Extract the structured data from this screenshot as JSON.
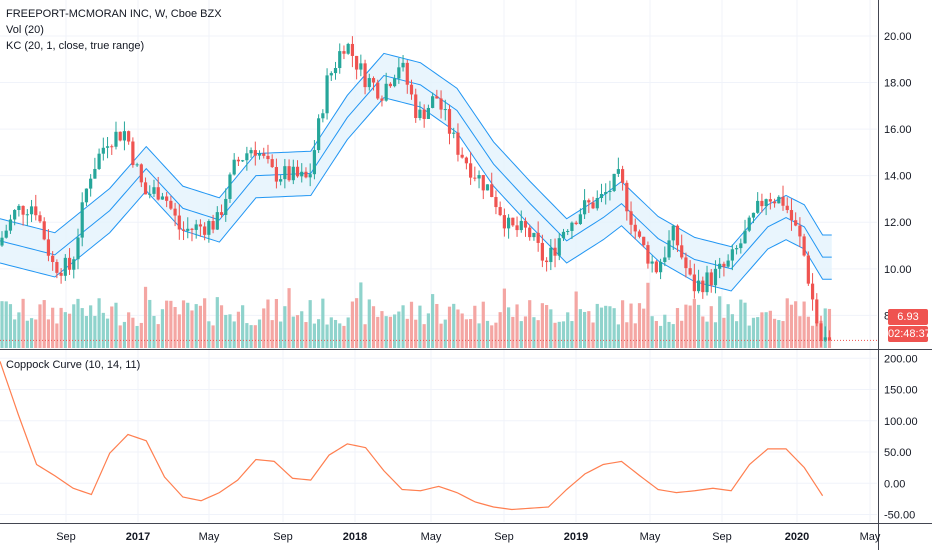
{
  "legend": {
    "symbol": "FREEPORT-MCMORAN INC, W, Cboe BZX",
    "volume": "Vol (20)",
    "keltner": "KC (20, 1, close, true range)",
    "coppock": "Coppock Curve (10, 14, 11)"
  },
  "price_tags": {
    "last": "6.93",
    "countdown": "02:48:37"
  },
  "colors": {
    "up": "#26a69a",
    "down": "#ef5350",
    "vol_up": "#8fd3cc",
    "vol_down": "#f4a6a3",
    "kc_line": "#2196f3",
    "kc_fill": "#e3f2fd",
    "coppock": "#ff7f50",
    "last_line": "#ef5350"
  },
  "chart_data": [
    {
      "type": "candlestick",
      "title": "FREEPORT-MCMORAN INC, W, Cboe BZX",
      "y_ticks": [
        "8.00",
        "10.00",
        "12.00",
        "14.00",
        "16.00",
        "18.00",
        "20.00"
      ],
      "ylim": [
        6.6,
        21.2
      ],
      "x_ticks": [
        "Sep",
        "2017",
        "May",
        "Sep",
        "2018",
        "May",
        "Sep",
        "2019",
        "May",
        "Sep",
        "2020",
        "May"
      ],
      "last_price": 6.93,
      "price_path": [
        [
          "2016-06",
          11.0
        ],
        [
          "2016-07",
          12.5
        ],
        [
          "2016-08",
          12.8
        ],
        [
          "2016-09",
          10.2
        ],
        [
          "2016-10",
          10.0
        ],
        [
          "2016-11",
          14.0
        ],
        [
          "2016-12",
          15.6
        ],
        [
          "2017-01",
          15.9
        ],
        [
          "2017-02",
          13.2
        ],
        [
          "2017-03",
          13.4
        ],
        [
          "2017-04",
          11.6
        ],
        [
          "2017-05",
          11.8
        ],
        [
          "2017-06",
          12.0
        ],
        [
          "2017-07",
          14.5
        ],
        [
          "2017-08",
          15.3
        ],
        [
          "2017-09",
          14.1
        ],
        [
          "2017-10",
          14.0
        ],
        [
          "2017-11",
          13.8
        ],
        [
          "2017-12",
          18.0
        ],
        [
          "2018-01",
          19.8
        ],
        [
          "2018-02",
          18.3
        ],
        [
          "2018-03",
          17.6
        ],
        [
          "2018-04",
          18.9
        ],
        [
          "2018-05",
          16.5
        ],
        [
          "2018-06",
          17.4
        ],
        [
          "2018-07",
          15.4
        ],
        [
          "2018-08",
          14.2
        ],
        [
          "2018-09",
          13.3
        ],
        [
          "2018-10",
          11.7
        ],
        [
          "2018-11",
          11.6
        ],
        [
          "2018-12",
          10.2
        ],
        [
          "2019-01",
          11.8
        ],
        [
          "2019-02",
          12.6
        ],
        [
          "2019-03",
          13.0
        ],
        [
          "2019-04",
          13.9
        ],
        [
          "2019-05",
          11.3
        ],
        [
          "2019-06",
          10.0
        ],
        [
          "2019-07",
          11.5
        ],
        [
          "2019-08",
          9.2
        ],
        [
          "2019-09",
          9.6
        ],
        [
          "2019-10",
          10.2
        ],
        [
          "2019-11",
          11.6
        ],
        [
          "2019-12",
          13.2
        ],
        [
          "2020-01",
          12.9
        ],
        [
          "2020-02",
          11.0
        ],
        [
          "2020-03",
          6.93
        ]
      ],
      "keltner_middle": [
        [
          "2016-06",
          11.2
        ],
        [
          "2016-09",
          10.6
        ],
        [
          "2016-12",
          12.5
        ],
        [
          "2017-02",
          14.3
        ],
        [
          "2017-04",
          12.6
        ],
        [
          "2017-06",
          12.1
        ],
        [
          "2017-08",
          14.0
        ],
        [
          "2017-11",
          14.1
        ],
        [
          "2018-01",
          16.5
        ],
        [
          "2018-03",
          18.3
        ],
        [
          "2018-05",
          17.9
        ],
        [
          "2018-07",
          16.8
        ],
        [
          "2018-09",
          14.5
        ],
        [
          "2018-11",
          12.8
        ],
        [
          "2019-01",
          11.2
        ],
        [
          "2019-03",
          12.2
        ],
        [
          "2019-04",
          12.8
        ],
        [
          "2019-06",
          11.3
        ],
        [
          "2019-08",
          10.4
        ],
        [
          "2019-10",
          10.0
        ],
        [
          "2019-12",
          11.8
        ],
        [
          "2020-01",
          12.2
        ],
        [
          "2020-02",
          11.8
        ],
        [
          "2020-03",
          10.5
        ]
      ],
      "keltner_band_width": 0.95
    },
    {
      "type": "bar",
      "title": "Vol (20)",
      "note": "weekly volume bars colored by candle direction"
    },
    {
      "type": "line",
      "title": "Coppock Curve (10, 14, 11)",
      "y_ticks": [
        "-50.00",
        "0.00",
        "50.00",
        "100.00",
        "150.00",
        "200.00"
      ],
      "ylim": [
        -62,
        210
      ],
      "points": [
        [
          "2016-06",
          195
        ],
        [
          "2016-07",
          110
        ],
        [
          "2016-08",
          30
        ],
        [
          "2016-09",
          12
        ],
        [
          "2016-10",
          -8
        ],
        [
          "2016-11",
          -18
        ],
        [
          "2016-12",
          48
        ],
        [
          "2017-01",
          78
        ],
        [
          "2017-02",
          68
        ],
        [
          "2017-03",
          10
        ],
        [
          "2017-04",
          -22
        ],
        [
          "2017-05",
          -28
        ],
        [
          "2017-06",
          -15
        ],
        [
          "2017-07",
          5
        ],
        [
          "2017-08",
          38
        ],
        [
          "2017-09",
          35
        ],
        [
          "2017-10",
          8
        ],
        [
          "2017-11",
          5
        ],
        [
          "2017-12",
          45
        ],
        [
          "2018-01",
          63
        ],
        [
          "2018-02",
          57
        ],
        [
          "2018-03",
          20
        ],
        [
          "2018-04",
          -10
        ],
        [
          "2018-05",
          -12
        ],
        [
          "2018-06",
          -5
        ],
        [
          "2018-07",
          -15
        ],
        [
          "2018-08",
          -30
        ],
        [
          "2018-09",
          -38
        ],
        [
          "2018-10",
          -42
        ],
        [
          "2018-11",
          -40
        ],
        [
          "2018-12",
          -38
        ],
        [
          "2019-01",
          -10
        ],
        [
          "2019-02",
          15
        ],
        [
          "2019-03",
          30
        ],
        [
          "2019-04",
          35
        ],
        [
          "2019-05",
          12
        ],
        [
          "2019-06",
          -10
        ],
        [
          "2019-07",
          -15
        ],
        [
          "2019-08",
          -12
        ],
        [
          "2019-09",
          -8
        ],
        [
          "2019-10",
          -12
        ],
        [
          "2019-11",
          30
        ],
        [
          "2019-12",
          55
        ],
        [
          "2020-01",
          55
        ],
        [
          "2020-02",
          25
        ],
        [
          "2020-03",
          -20
        ]
      ]
    }
  ]
}
